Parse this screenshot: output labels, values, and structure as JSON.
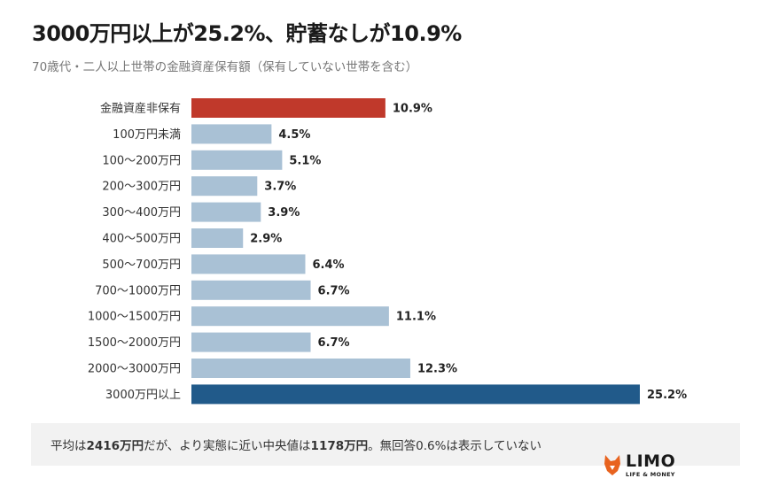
{
  "title": "3000万円以上が25.2%、貯蓄なしが10.9%",
  "subtitle": "70歳代・二人以上世帯の金融資産保有額（保有していない世帯を含む）",
  "note": {
    "part1": "平均は",
    "bold1": "2416万円",
    "part2": "だが、より実態に近い中央値は",
    "bold2": "1178万円",
    "part3": "。無回答0.6%は表示していない"
  },
  "logo": {
    "text": "LIMO",
    "sub": "LIFE & MONEY"
  },
  "colors": {
    "highlight_red": "#c0392b",
    "highlight_blue": "#215a8a",
    "default": "#a9c1d5"
  },
  "chart_data": {
    "type": "bar",
    "orientation": "horizontal",
    "categories": [
      "金融資産非保有",
      "100万円未満",
      "100～200万円",
      "200～300万円",
      "300～400万円",
      "400～500万円",
      "500～700万円",
      "700～1000万円",
      "1000～1500万円",
      "1500～2000万円",
      "2000～3000万円",
      "3000万円以上"
    ],
    "values": [
      10.9,
      4.5,
      5.1,
      3.7,
      3.9,
      2.9,
      6.4,
      6.7,
      11.1,
      6.7,
      12.3,
      25.2
    ],
    "labels": [
      "10.9%",
      "4.5%",
      "5.1%",
      "3.7%",
      "3.9%",
      "2.9%",
      "6.4%",
      "6.7%",
      "11.1%",
      "6.7%",
      "12.3%",
      "25.2%"
    ],
    "bar_colors": [
      "#c0392b",
      "#a9c1d5",
      "#a9c1d5",
      "#a9c1d5",
      "#a9c1d5",
      "#a9c1d5",
      "#a9c1d5",
      "#a9c1d5",
      "#a9c1d5",
      "#a9c1d5",
      "#a9c1d5",
      "#215a8a"
    ],
    "unit": "%",
    "grid": false
  }
}
